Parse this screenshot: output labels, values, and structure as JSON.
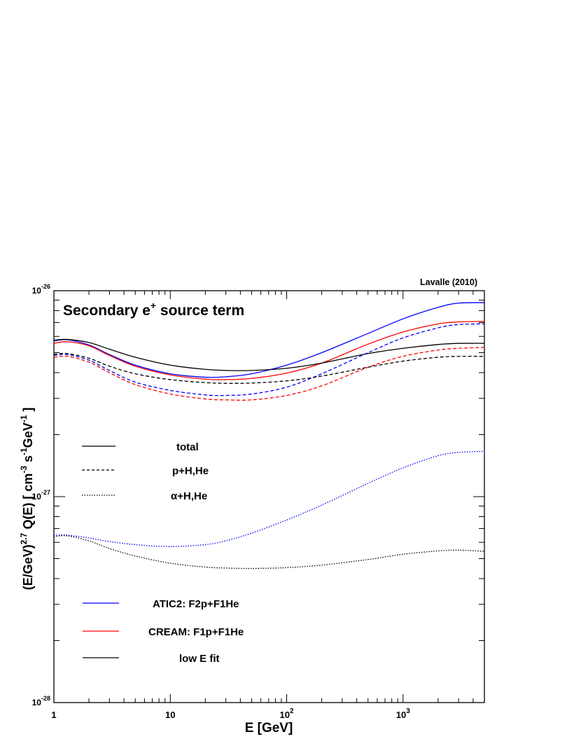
{
  "chart_data": {
    "type": "line",
    "title": "Secondary e⁺ source term",
    "title_main": "Secondary e",
    "title_sup": "+",
    "title_rest": " source term",
    "credit": "Lavalle (2010)",
    "xlabel": "E [GeV]",
    "ylabel_parts": {
      "p1": "(E/GeV)",
      "s1": "2.7",
      "p2": " Q(E) [ cm",
      "s2": "-3",
      "p3": " s",
      "s3": "-1",
      "p4": "GeV",
      "s4": "-1",
      "p5": " ]"
    },
    "x_scale": "log",
    "y_scale": "log",
    "xlim": [
      1,
      5000
    ],
    "ylim": [
      1e-28,
      1e-26
    ],
    "x_ticks": [
      {
        "base": "1",
        "exp": ""
      },
      {
        "base": "10",
        "exp": ""
      },
      {
        "base": "10",
        "exp": "2"
      },
      {
        "base": "10",
        "exp": "3"
      }
    ],
    "y_ticks": [
      {
        "base": "10",
        "exp": "-28"
      },
      {
        "base": "10",
        "exp": "-27"
      },
      {
        "base": "10",
        "exp": "-26"
      }
    ],
    "grid": false,
    "legend_style": [
      {
        "label": "total",
        "dash": "solid"
      },
      {
        "label": "p+H,He",
        "dash": "dashed"
      },
      {
        "label": "α+H,He",
        "dash": "dotted"
      }
    ],
    "legend_model": [
      {
        "label": "ATIC2: F2p+F1He",
        "color": "#0000ff"
      },
      {
        "label": "CREAM: F1p+F1He",
        "color": "#ff0000"
      },
      {
        "label": "low E fit",
        "color": "#000000"
      }
    ],
    "series": [
      {
        "color": "#0000ff",
        "dash": "solid",
        "x": [
          1,
          1.3,
          2,
          3,
          5,
          10,
          20,
          30,
          50,
          100,
          200,
          500,
          1000,
          2000,
          3000,
          5000
        ],
        "y": [
          5.7e-27,
          5.78e-27,
          5.45e-27,
          4.9e-27,
          4.35e-27,
          3.95e-27,
          3.8e-27,
          3.82e-27,
          3.95e-27,
          4.35e-27,
          5e-27,
          6.2e-27,
          7.3e-27,
          8.3e-27,
          8.7e-27,
          8.75e-27
        ]
      },
      {
        "color": "#ff0000",
        "dash": "solid",
        "x": [
          1,
          1.3,
          2,
          3,
          5,
          10,
          20,
          30,
          50,
          100,
          200,
          500,
          1000,
          2000,
          3000,
          5000
        ],
        "y": [
          5.55e-27,
          5.65e-27,
          5.4e-27,
          4.85e-27,
          4.3e-27,
          3.9e-27,
          3.72e-27,
          3.7e-27,
          3.75e-27,
          3.98e-27,
          4.45e-27,
          5.5e-27,
          6.3e-27,
          6.9e-27,
          7.05e-27,
          7.1e-27
        ]
      },
      {
        "color": "#000000",
        "dash": "solid",
        "x": [
          1,
          1.3,
          2,
          3,
          5,
          10,
          20,
          30,
          50,
          100,
          200,
          500,
          1000,
          2000,
          3000,
          5000
        ],
        "y": [
          5.75e-27,
          5.8e-27,
          5.6e-27,
          5.2e-27,
          4.75e-27,
          4.35e-27,
          4.15e-27,
          4.1e-27,
          4.1e-27,
          4.2e-27,
          4.45e-27,
          4.95e-27,
          5.25e-27,
          5.48e-27,
          5.55e-27,
          5.55e-27
        ]
      },
      {
        "color": "#0000ff",
        "dash": "dashed",
        "x": [
          1,
          1.3,
          2,
          3,
          5,
          10,
          20,
          30,
          50,
          100,
          200,
          500,
          1000,
          2000,
          3000,
          5000
        ],
        "y": [
          4.85e-27,
          4.9e-27,
          4.6e-27,
          4.1e-27,
          3.6e-27,
          3.28e-27,
          3.12e-27,
          3.1e-27,
          3.15e-27,
          3.4e-27,
          3.95e-27,
          5e-27,
          5.9e-27,
          6.6e-27,
          6.85e-27,
          6.9e-27
        ]
      },
      {
        "color": "#ff0000",
        "dash": "dashed",
        "x": [
          1,
          1.3,
          2,
          3,
          5,
          10,
          20,
          30,
          50,
          100,
          200,
          500,
          1000,
          2000,
          3000,
          5000
        ],
        "y": [
          4.75e-27,
          4.8e-27,
          4.5e-27,
          4e-27,
          3.5e-27,
          3.15e-27,
          2.98e-27,
          2.95e-27,
          2.95e-27,
          3.1e-27,
          3.45e-27,
          4.25e-27,
          4.8e-27,
          5.15e-27,
          5.25e-27,
          5.3e-27
        ]
      },
      {
        "color": "#000000",
        "dash": "dashed",
        "x": [
          1,
          1.3,
          2,
          3,
          5,
          10,
          20,
          30,
          50,
          100,
          200,
          500,
          1000,
          2000,
          3000,
          5000
        ],
        "y": [
          4.9e-27,
          4.95e-27,
          4.7e-27,
          4.3e-27,
          3.95e-27,
          3.7e-27,
          3.58e-27,
          3.55e-27,
          3.56e-27,
          3.65e-27,
          3.85e-27,
          4.25e-27,
          4.55e-27,
          4.75e-27,
          4.8e-27,
          4.8e-27
        ]
      },
      {
        "color": "#0000ff",
        "dash": "dotted",
        "x": [
          1,
          1.3,
          2,
          3,
          5,
          10,
          20,
          30,
          50,
          100,
          200,
          500,
          1000,
          2000,
          3000,
          5000
        ],
        "y": [
          6.5e-28,
          6.5e-28,
          6.3e-28,
          6.05e-28,
          5.85e-28,
          5.72e-28,
          5.85e-28,
          6.1e-28,
          6.65e-28,
          7.7e-28,
          9.1e-28,
          1.16e-27,
          1.38e-27,
          1.58e-27,
          1.64e-27,
          1.66e-27
        ]
      },
      {
        "color": "#000000",
        "dash": "dotted",
        "x": [
          1,
          1.3,
          2,
          3,
          5,
          10,
          20,
          30,
          50,
          100,
          200,
          500,
          1000,
          2000,
          3000,
          5000
        ],
        "y": [
          6.4e-28,
          6.45e-28,
          6.1e-28,
          5.6e-28,
          5.15e-28,
          4.75e-28,
          4.55e-28,
          4.5e-28,
          4.48e-28,
          4.52e-28,
          4.65e-28,
          4.95e-28,
          5.25e-28,
          5.45e-28,
          5.5e-28,
          5.42e-28
        ]
      }
    ]
  }
}
